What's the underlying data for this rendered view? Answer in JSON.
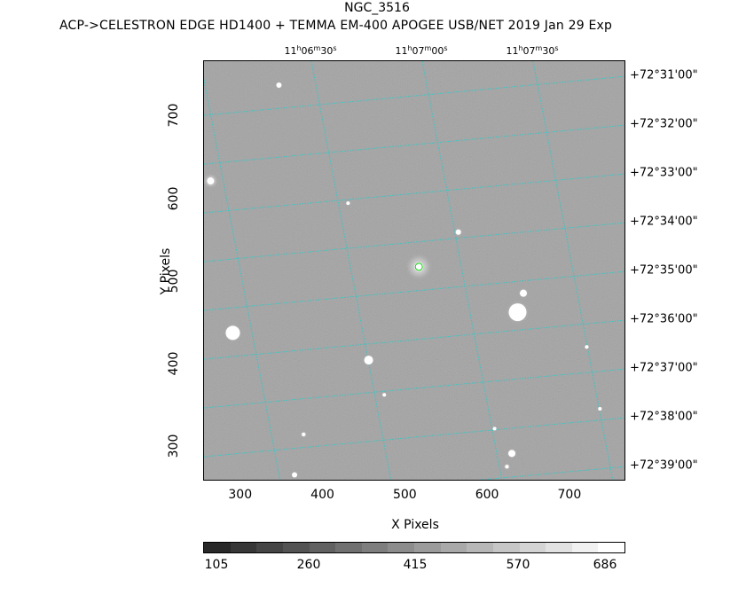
{
  "header": {
    "title": "NGC_3516",
    "subtitle": "ACP->CELESTRON EDGE HD1400 + TEMMA EM-400 APOGEE USB/NET   2019 Jan 29    Exp"
  },
  "axes": {
    "xlabel": "X Pixels",
    "ylabel": "Y Pixels",
    "xlim": [
      255,
      768
    ],
    "ylim": [
      258,
      767
    ],
    "xticks": [
      "300",
      "400",
      "500",
      "600",
      "700"
    ],
    "yticks": [
      "300",
      "400",
      "500",
      "600",
      "700"
    ]
  },
  "wcs": {
    "ra_ticks": [
      {
        "h": "11",
        "hs": "h",
        "m": "06",
        "ms": "m",
        "s": "30",
        "ss": "s"
      },
      {
        "h": "11",
        "hs": "h",
        "m": "07",
        "ms": "m",
        "s": "00",
        "ss": "s"
      },
      {
        "h": "11",
        "hs": "h",
        "m": "07",
        "ms": "m",
        "s": "30",
        "ss": "s"
      }
    ],
    "dec_ticks": [
      "+72°31'00\"",
      "+72°32'00\"",
      "+72°33'00\"",
      "+72°34'00\"",
      "+72°35'00\"",
      "+72°36'00\"",
      "+72°37'00\"",
      "+72°38'00\"",
      "+72°39'00\""
    ],
    "grid_color": "#36c6c6"
  },
  "target_marker": {
    "x": 516,
    "y": 518,
    "color": "#00d000"
  },
  "stars": [
    {
      "x": 516,
      "y": 518,
      "r": 5,
      "glow": 16
    },
    {
      "x": 636,
      "y": 463,
      "r": 10,
      "glow": 14
    },
    {
      "x": 290,
      "y": 438,
      "r": 8,
      "glow": 11
    },
    {
      "x": 455,
      "y": 405,
      "r": 5,
      "glow": 7
    },
    {
      "x": 643,
      "y": 486,
      "r": 4,
      "glow": 6
    },
    {
      "x": 564,
      "y": 560,
      "r": 3,
      "glow": 5
    },
    {
      "x": 629,
      "y": 292,
      "r": 4,
      "glow": 6
    },
    {
      "x": 346,
      "y": 738,
      "r": 3,
      "glow": 4
    },
    {
      "x": 263,
      "y": 622,
      "r": 4,
      "glow": 9
    },
    {
      "x": 365,
      "y": 266,
      "r": 3,
      "glow": 4
    },
    {
      "x": 623,
      "y": 276,
      "r": 2,
      "glow": 4
    },
    {
      "x": 376,
      "y": 315,
      "r": 2,
      "glow": 4
    },
    {
      "x": 474,
      "y": 363,
      "r": 2,
      "glow": 3
    },
    {
      "x": 608,
      "y": 322,
      "r": 2,
      "glow": 3
    },
    {
      "x": 430,
      "y": 595,
      "r": 2,
      "glow": 3
    },
    {
      "x": 720,
      "y": 421,
      "r": 2,
      "glow": 3
    },
    {
      "x": 736,
      "y": 346,
      "r": 2,
      "glow": 3
    }
  ],
  "colorbar": {
    "ticks": [
      "105",
      "260",
      "415",
      "570",
      "686"
    ],
    "levels": [
      105,
      141,
      177,
      210,
      245,
      280,
      316,
      350,
      385,
      420,
      455,
      490,
      525,
      560,
      595,
      630
    ]
  }
}
